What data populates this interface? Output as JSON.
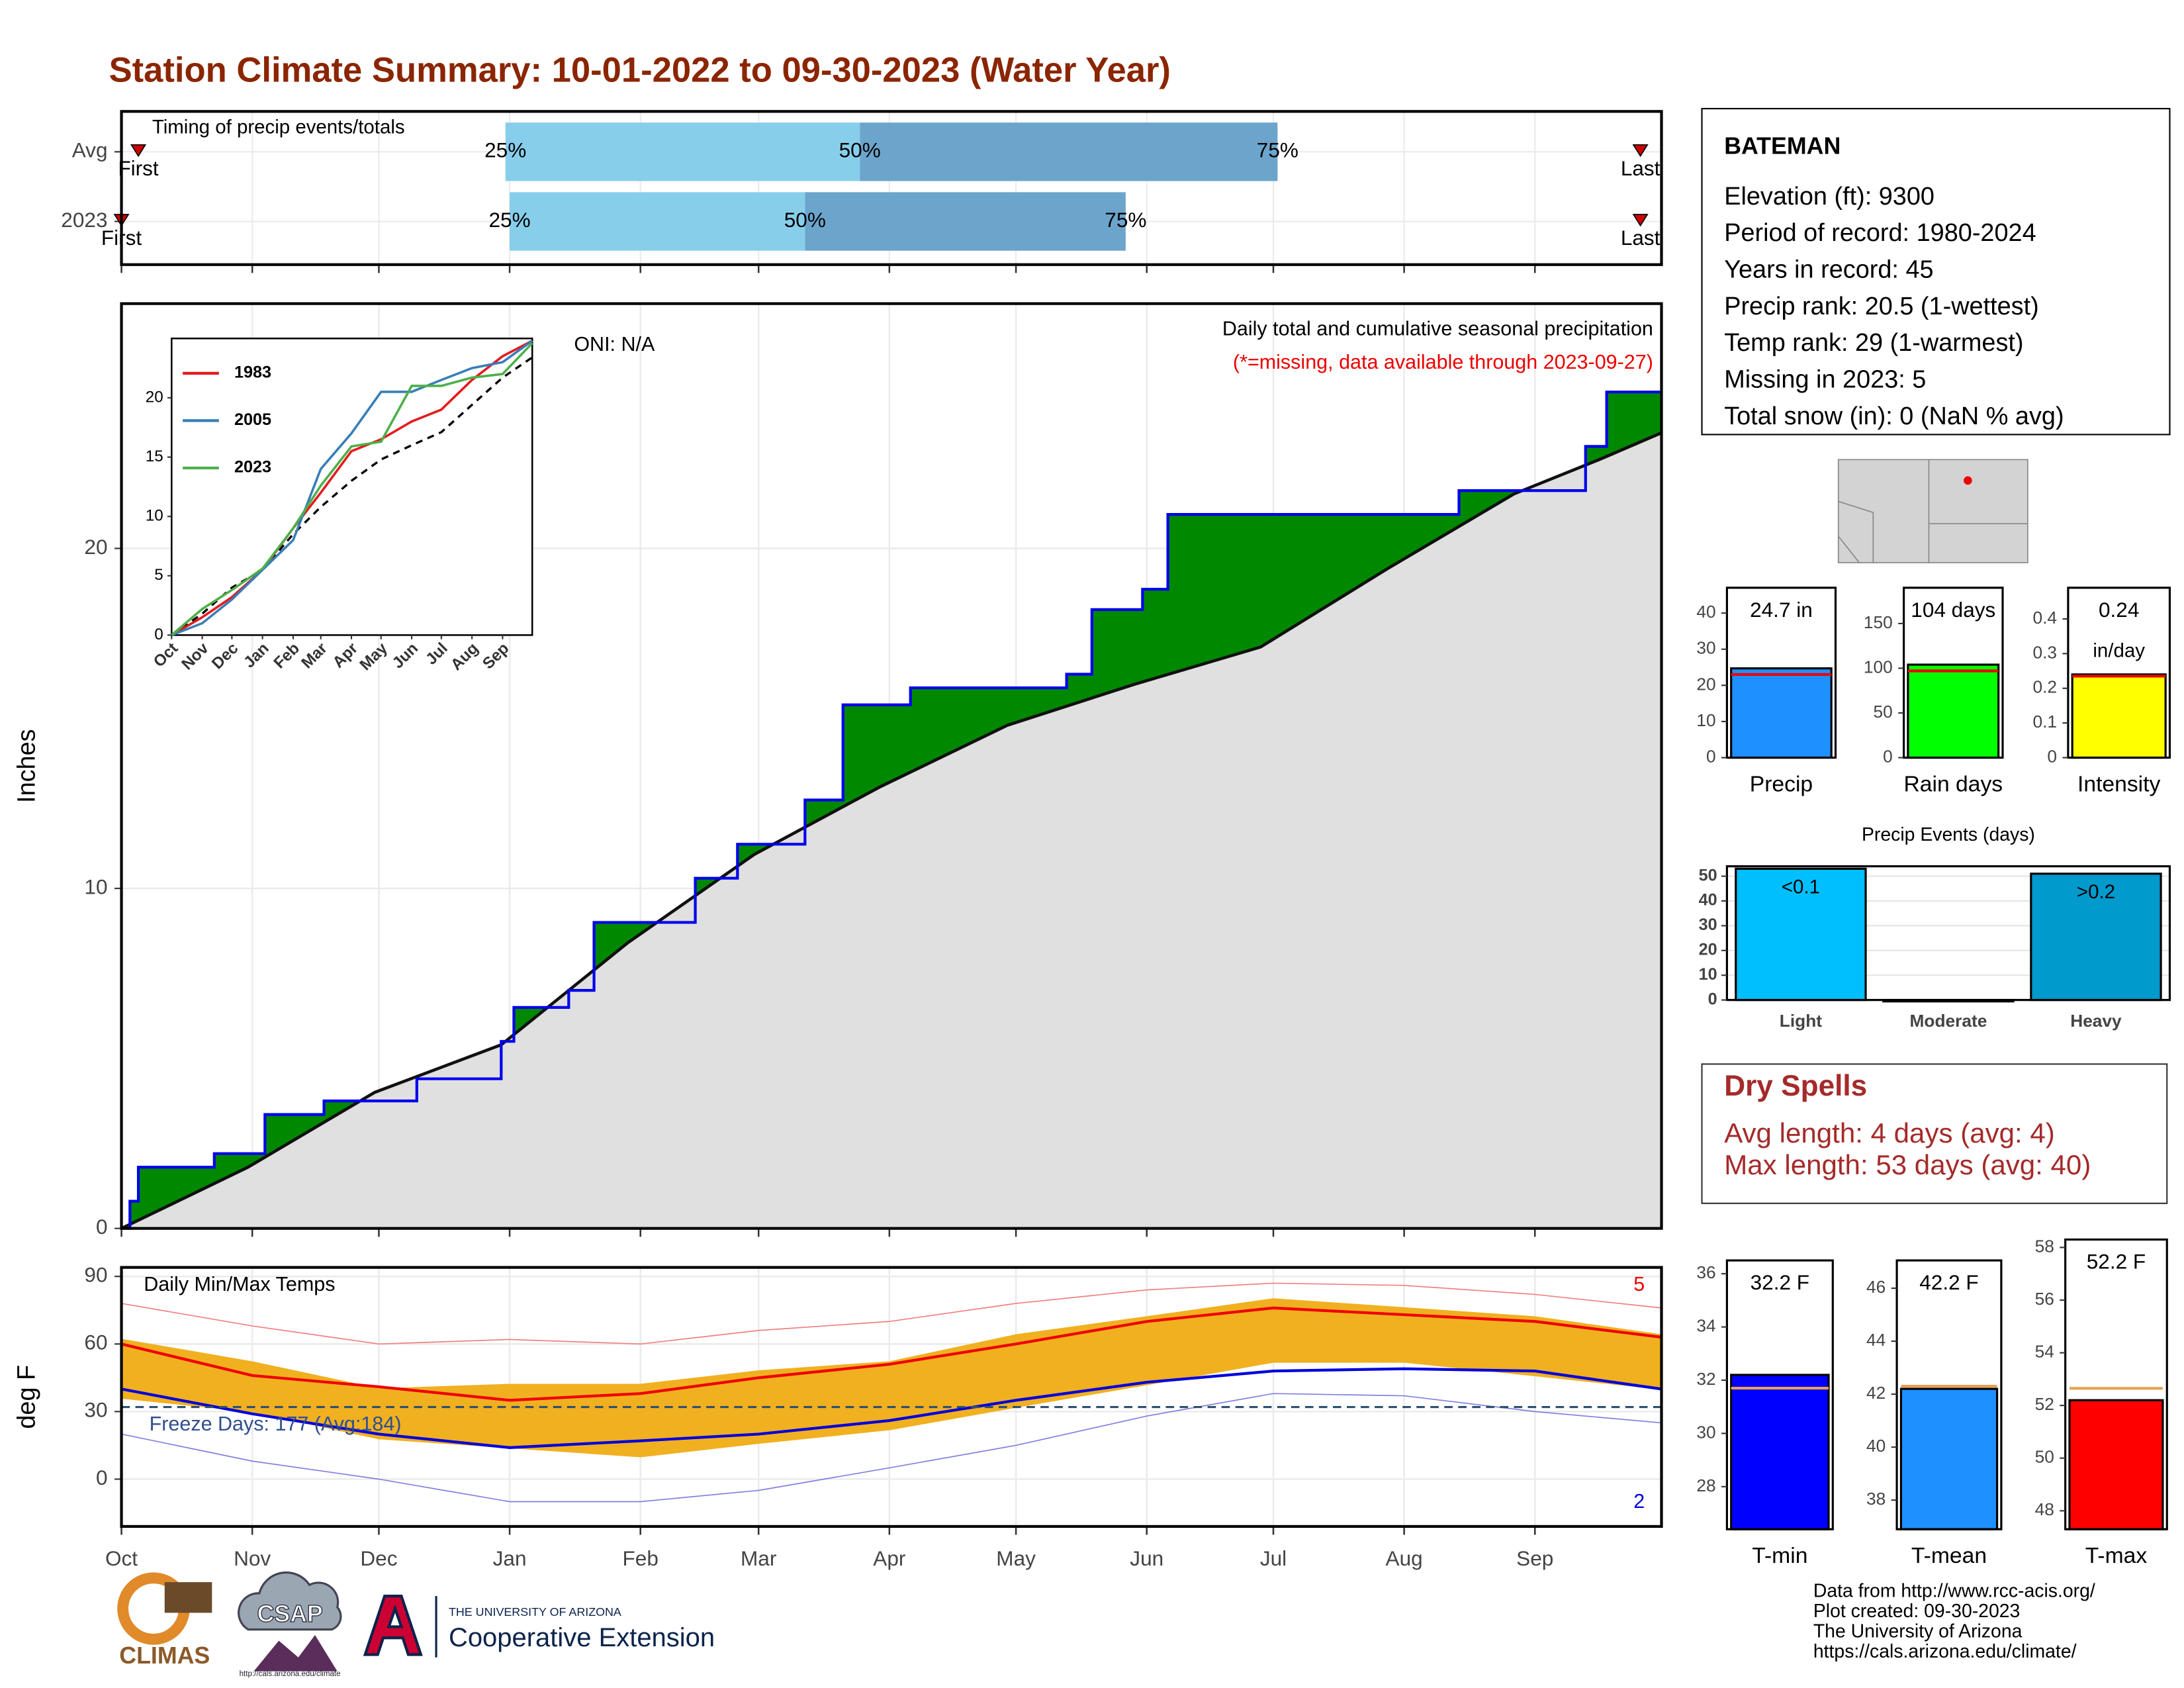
{
  "title": "Station Climate Summary: 10-01-2022 to 09-30-2023 (Water Year)",
  "station": {
    "name": "BATEMAN",
    "lines": [
      "Elevation (ft): 9300",
      "Period of record: 1980-2024",
      "Years in record: 45",
      "Precip rank: 20.5 (1-wettest)",
      "Temp rank: 29 (1-warmest)",
      "Missing in 2023: 5",
      "Total snow (in): 0 (NaN % avg)"
    ]
  },
  "dry_spells": {
    "title": "Dry Spells",
    "lines": [
      "Avg length: 4 days (avg: 4)",
      "Max length: 53 days (avg: 40)"
    ]
  },
  "footer": {
    "lines": [
      "Data from http://www.rcc-acis.org/",
      "Plot created: 09-30-2023",
      "The University of Arizona",
      "https://cals.arizona.edu/climate/"
    ],
    "logos": {
      "climas": "CLIMAS",
      "csap": "CSAP",
      "csap_url": "http://cals.arizona.edu/climate",
      "university": "THE UNIVERSITY OF ARIZONA",
      "extension": "Cooperative Extension"
    }
  },
  "chart_data": [
    {
      "type": "timing",
      "title": "Timing of precip events/totals",
      "xlim": [
        0,
        365
      ],
      "xticks": [
        0,
        31,
        61,
        92,
        123,
        151,
        182,
        212,
        243,
        273,
        304,
        335
      ],
      "labels": {
        "first": "First",
        "q25": "25%",
        "q50": "50%",
        "q75": "75%",
        "last": "Last"
      },
      "colors": {
        "early": "#87ceeb",
        "late": "#6ca5cc",
        "marker": "#d00000"
      },
      "rows": [
        {
          "name": "Avg",
          "first": 4,
          "q25": 91,
          "q50": 175,
          "q75": 274,
          "last": 360
        },
        {
          "name": "2023",
          "first": 0,
          "q25": 92,
          "q50": 162,
          "q75": 238,
          "last": 360
        }
      ]
    },
    {
      "type": "cumulative",
      "title": "Daily total and cumulative seasonal precipitation",
      "subtitle": "(*=missing, data available through 2023-09-27)",
      "annotation": "ONI: N/A",
      "ylabel": "Inches",
      "xlim": [
        0,
        365
      ],
      "ylim": [
        0,
        27.2
      ],
      "xticks": [
        0,
        31,
        61,
        92,
        123,
        151,
        182,
        212,
        243,
        273,
        304,
        335
      ],
      "yticks": [
        0,
        10,
        20
      ],
      "grid": true,
      "colors": {
        "line": "#0000ee",
        "above": "#008800",
        "average": "#111111",
        "below_area": "#e0e0e0",
        "subtitle": "#ee0000"
      },
      "cumulative": {
        "x": [
          0,
          2,
          4,
          22,
          34,
          48,
          70,
          90,
          93,
          106,
          112,
          136,
          146,
          162,
          171,
          187,
          224,
          230,
          242,
          248,
          317,
          347,
          352,
          365
        ],
        "values": [
          0,
          0.8,
          1.8,
          2.2,
          3.35,
          3.75,
          4.4,
          5.5,
          6.5,
          7,
          9,
          10.3,
          11.3,
          12.6,
          15.4,
          15.9,
          16.3,
          18.2,
          18.8,
          21,
          21.7,
          23,
          24.6,
          24.6
        ]
      },
      "average": {
        "x": [
          0,
          30,
          60,
          90,
          120,
          150,
          180,
          210,
          240,
          270,
          300,
          330,
          350,
          365
        ],
        "values": [
          0,
          1.8,
          4,
          5.4,
          8.4,
          11,
          13,
          14.8,
          16,
          17.1,
          19.4,
          21.6,
          22.6,
          23.4
        ]
      }
    },
    {
      "type": "line",
      "xlim": [
        0,
        365
      ],
      "ylim": [
        0,
        25
      ],
      "xticks": [
        {
          "value": 0,
          "label": "Oct"
        },
        {
          "value": 31,
          "label": "Nov"
        },
        {
          "value": 61,
          "label": "Dec"
        },
        {
          "value": 92,
          "label": "Jan"
        },
        {
          "value": 123,
          "label": "Feb"
        },
        {
          "value": 151,
          "label": "Mar"
        },
        {
          "value": 182,
          "label": "Apr"
        },
        {
          "value": 212,
          "label": "May"
        },
        {
          "value": 243,
          "label": "Jun"
        },
        {
          "value": 273,
          "label": "Jul"
        },
        {
          "value": 304,
          "label": "Aug"
        },
        {
          "value": 335,
          "label": "Sep"
        }
      ],
      "yticks": [
        0,
        5,
        10,
        15,
        20
      ],
      "x": [
        0,
        31,
        61,
        92,
        123,
        151,
        182,
        212,
        243,
        273,
        304,
        335,
        365
      ],
      "series": [
        {
          "name": "1983",
          "color": "#e41a1c",
          "values": [
            0,
            1.5,
            3.2,
            5.5,
            9,
            12,
            15.5,
            16.5,
            18,
            19,
            21.5,
            23.5,
            24.8
          ]
        },
        {
          "name": "2005",
          "color": "#377eb8",
          "values": [
            0,
            1,
            3,
            5.5,
            8,
            14,
            17,
            20.5,
            20.5,
            21.5,
            22.5,
            23,
            24.8
          ]
        },
        {
          "name": "2023",
          "color": "#4daf4a",
          "values": [
            0,
            2.2,
            3.8,
            5.6,
            9,
            12.6,
            15.9,
            16.3,
            21,
            21,
            21.7,
            22,
            24.6
          ]
        }
      ],
      "average": {
        "color": "#000000",
        "values": [
          0,
          1.8,
          4,
          5.5,
          8.5,
          10.8,
          13,
          14.8,
          16,
          17.1,
          19.4,
          21.7,
          23.4
        ]
      }
    },
    {
      "type": "temperature",
      "title": "Daily Min/Max Temps",
      "annotation": "Freeze Days: 177 (Avg:184)",
      "record_high_count": "5",
      "record_low_count": "2",
      "ylabel": "deg F",
      "xlim": [
        0,
        365
      ],
      "ylim": [
        -21,
        94
      ],
      "xticks": [
        {
          "value": 0,
          "label": "Oct"
        },
        {
          "value": 31,
          "label": "Nov"
        },
        {
          "value": 61,
          "label": "Dec"
        },
        {
          "value": 92,
          "label": "Jan"
        },
        {
          "value": 123,
          "label": "Feb"
        },
        {
          "value": 151,
          "label": "Mar"
        },
        {
          "value": 182,
          "label": "Apr"
        },
        {
          "value": 212,
          "label": "May"
        },
        {
          "value": 243,
          "label": "Jun"
        },
        {
          "value": 273,
          "label": "Jul"
        },
        {
          "value": 304,
          "label": "Aug"
        },
        {
          "value": 335,
          "label": "Sep"
        }
      ],
      "yticks": [
        0,
        30,
        60,
        90
      ],
      "grid": true,
      "freeze": 32,
      "x": [
        0,
        31,
        61,
        92,
        123,
        151,
        182,
        212,
        243,
        273,
        304,
        335,
        365
      ],
      "observed_max": {
        "color": "#f0b020",
        "values": [
          62,
          52,
          40,
          42,
          42,
          48,
          52,
          64,
          72,
          80,
          76,
          72,
          64
        ]
      },
      "observed_min": {
        "color": "#f0b020",
        "values": [
          36,
          30,
          18,
          14,
          10,
          16,
          22,
          32,
          42,
          52,
          52,
          46,
          40
        ]
      },
      "avg_max": {
        "color": "#ee0000",
        "values": [
          60,
          46,
          41,
          35,
          38,
          45,
          51,
          60,
          70,
          76,
          73,
          70,
          63
        ]
      },
      "avg_min": {
        "color": "#0000dd",
        "values": [
          40,
          29,
          20,
          14,
          17,
          20,
          26,
          35,
          43,
          48,
          49,
          48,
          40
        ]
      },
      "record_max": {
        "color": "#f08080",
        "values": [
          78,
          68,
          60,
          62,
          60,
          66,
          70,
          78,
          84,
          87,
          86,
          82,
          76
        ]
      },
      "record_min": {
        "color": "#8080e0",
        "values": [
          20,
          8,
          0,
          -10,
          -10,
          -5,
          5,
          15,
          28,
          38,
          37,
          30,
          25
        ]
      }
    },
    {
      "type": "bar-avg",
      "xlabel": "Precip",
      "values": [
        24.7
      ],
      "value_labels": [
        "24.7 in"
      ],
      "avg": 23,
      "color": "#1e90ff",
      "avg_color": "#ee0000",
      "ylim": [
        0,
        47
      ],
      "yticks": [
        0,
        10,
        20,
        30,
        40
      ]
    },
    {
      "type": "bar-avg",
      "xlabel": "Rain days",
      "values": [
        104
      ],
      "value_labels": [
        "104 days"
      ],
      "avg": 97,
      "color": "#00ff00",
      "avg_color": "#ee0000",
      "ylim": [
        0,
        190
      ],
      "yticks": [
        0,
        50,
        100,
        150
      ]
    },
    {
      "type": "bar-avg",
      "xlabel": "Intensity",
      "values": [
        0.24
      ],
      "value_labels": [
        "0.24"
      ],
      "unit": "in/day",
      "avg": 0.235,
      "color": "#ffff00",
      "avg_color": "#ee0000",
      "ylim": [
        0,
        0.49
      ],
      "yticks": [
        0.0,
        0.1,
        0.2,
        0.3,
        0.4
      ]
    },
    {
      "type": "bar",
      "title": "Precip Events (days)",
      "categories": [
        "Light",
        "Moderate",
        "Heavy"
      ],
      "values": [
        53,
        0,
        51
      ],
      "bar_texts": [
        "<0.1",
        null,
        ">0.2"
      ],
      "colors": [
        "#00bfff",
        "#009acd",
        "#009acd"
      ],
      "ylim": [
        0,
        54
      ],
      "yticks": [
        0,
        10,
        20,
        30,
        40,
        50
      ],
      "grid": true
    },
    {
      "type": "bar-avg",
      "xlabel": "T-min",
      "values": [
        32.2
      ],
      "value_labels": [
        "32.2 F"
      ],
      "avg": 31.7,
      "color": "#0000ff",
      "avg_color": "#e8a050",
      "ylim": [
        26.4,
        36.5
      ],
      "yticks": [
        28,
        30,
        32,
        34,
        36
      ]
    },
    {
      "type": "bar-avg",
      "xlabel": "T-mean",
      "values": [
        42.2
      ],
      "value_labels": [
        "42.2 F"
      ],
      "avg": 42.3,
      "color": "#1e90ff",
      "avg_color": "#e8a050",
      "ylim": [
        36.9,
        47.05
      ],
      "yticks": [
        38,
        40,
        42,
        44,
        46
      ]
    },
    {
      "type": "bar-avg",
      "xlabel": "T-max",
      "values": [
        52.2
      ],
      "value_labels": [
        "52.2 F"
      ],
      "avg": 52.65,
      "color": "#ff0000",
      "avg_color": "#e8a050",
      "ylim": [
        47.3,
        58.3
      ],
      "yticks": [
        48,
        50,
        52,
        54,
        56,
        58
      ]
    }
  ]
}
